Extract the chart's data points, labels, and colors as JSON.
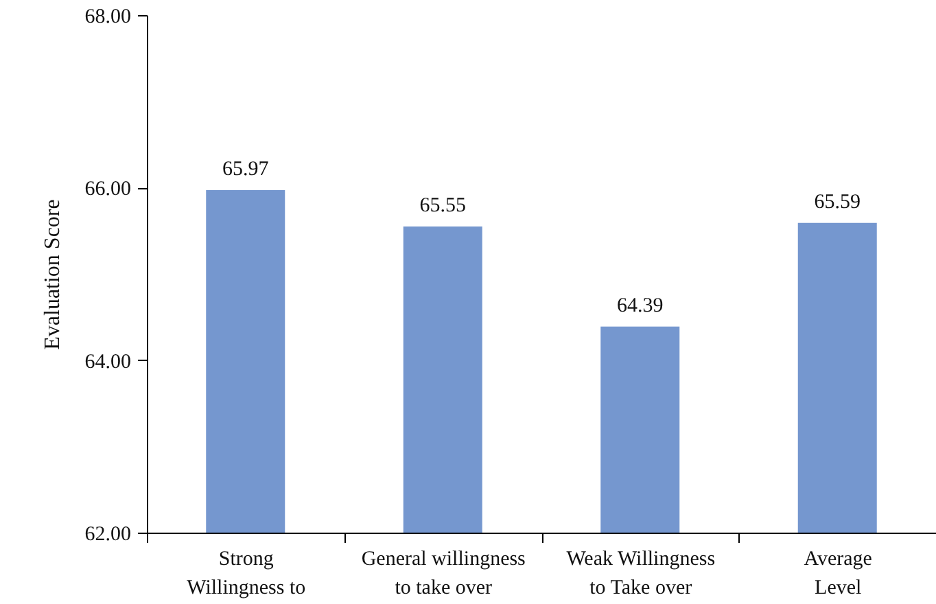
{
  "chart_data": {
    "type": "bar",
    "ylabel": "Evaluation Score",
    "categories": [
      "Strong\nWillingness to",
      "General willingness\nto take over",
      "Weak Willingness\nto Take over",
      "Average\nLevel"
    ],
    "values": [
      65.97,
      65.55,
      64.39,
      65.59
    ],
    "color": "#7597cf",
    "ylim": [
      62,
      68
    ],
    "yticks": [
      {
        "value": 62,
        "label": "62.00"
      },
      {
        "value": 64,
        "label": "64.00"
      },
      {
        "value": 66,
        "label": "66.00"
      },
      {
        "value": 68,
        "label": "68.00"
      }
    ],
    "data_labels": true
  }
}
